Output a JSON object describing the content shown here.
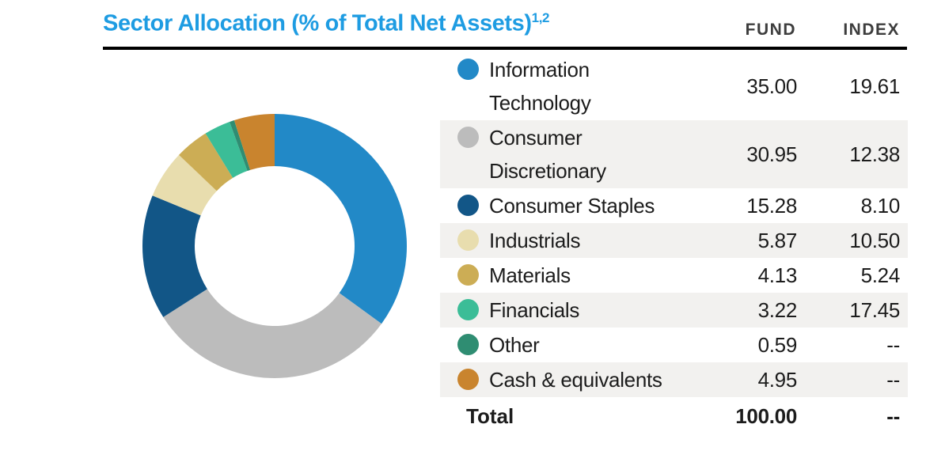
{
  "header": {
    "title": "Sector Allocation (% of Total Net Assets)",
    "title_superscript": "1,2",
    "col_fund": "FUND",
    "col_index": "INDEX"
  },
  "colors": {
    "title_accent": "#1e9ce2",
    "header_text": "#3d3d3d",
    "rule": "#000000",
    "row_stripe": "#f2f1ef",
    "body_text": "#1c1c1c"
  },
  "chart_data": {
    "type": "pie",
    "subtype": "donut",
    "title": "Sector Allocation (% of Total Net Assets)",
    "legend_position": "right",
    "start_angle_deg": -90,
    "direction": "clockwise",
    "categories": [
      "Information Technology",
      "Consumer Discretionary",
      "Consumer Staples",
      "Industrials",
      "Materials",
      "Financials",
      "Other",
      "Cash & equivalents"
    ],
    "series": [
      {
        "name": "FUND",
        "values": [
          35.0,
          30.95,
          15.28,
          5.87,
          4.13,
          3.22,
          0.59,
          4.95
        ]
      },
      {
        "name": "INDEX",
        "values": [
          19.61,
          12.38,
          8.1,
          10.5,
          5.24,
          17.45,
          null,
          null
        ]
      }
    ],
    "donut_series": "FUND",
    "colors": [
      "#2289c7",
      "#bcbcbc",
      "#125687",
      "#e8ddae",
      "#ccad55",
      "#3bbd97",
      "#2f8d72",
      "#c9842e"
    ],
    "total": {
      "label": "Total",
      "fund": "100.00",
      "index": "--"
    }
  },
  "table": {
    "rows": [
      {
        "label": "Information Technology",
        "fund": "35.00",
        "index": "19.61"
      },
      {
        "label": "Consumer Discretionary",
        "fund": "30.95",
        "index": "12.38"
      },
      {
        "label": "Consumer Staples",
        "fund": "15.28",
        "index": "8.10"
      },
      {
        "label": "Industrials",
        "fund": "5.87",
        "index": "10.50"
      },
      {
        "label": "Materials",
        "fund": "4.13",
        "index": "5.24"
      },
      {
        "label": "Financials",
        "fund": "3.22",
        "index": "17.45"
      },
      {
        "label": "Other",
        "fund": "0.59",
        "index": "--"
      },
      {
        "label": "Cash & equivalents",
        "fund": "4.95",
        "index": "--"
      }
    ],
    "total": {
      "label": "Total",
      "fund": "100.00",
      "index": "--"
    }
  }
}
